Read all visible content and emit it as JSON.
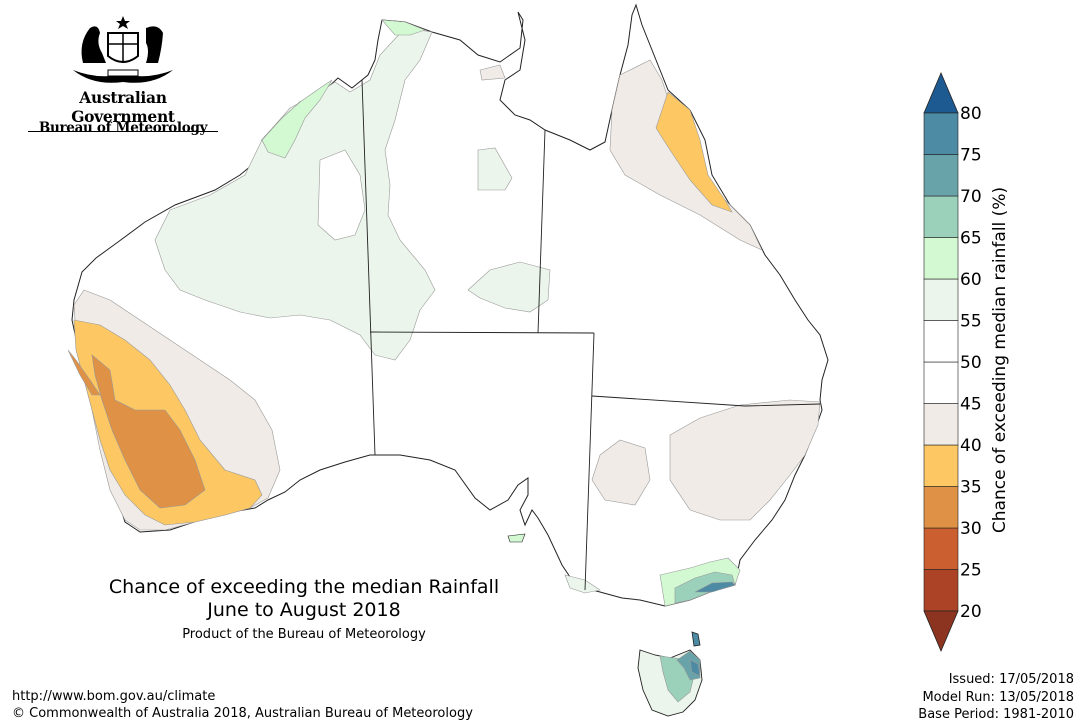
{
  "header": {
    "government_name": "Australian Government",
    "agency_name": "Bureau of Meteorology"
  },
  "map": {
    "title_line1": "Chance of exceeding the median Rainfall",
    "title_line2": "June to August 2018",
    "product_line": "Product of the Bureau of Meteorology",
    "regions": [
      {
        "name": "Southwest WA",
        "category": "30-35"
      },
      {
        "name": "Southern WA coast",
        "category": "35-40"
      },
      {
        "name": "Northeast Queensland coast",
        "category": "35-40"
      },
      {
        "name": "Kimberley coast",
        "category": "60-65"
      },
      {
        "name": "Eastern Victoria",
        "category": "65-75"
      },
      {
        "name": "Western Tasmania",
        "category": "70-75"
      },
      {
        "name": "Southern NSW inland",
        "category": "40-45"
      }
    ]
  },
  "legend": {
    "title": "Chance of exceeding median rainfall (%)",
    "ticks": [
      "20",
      "25",
      "30",
      "35",
      "40",
      "45",
      "50",
      "55",
      "60",
      "65",
      "70",
      "75",
      "80"
    ],
    "colors": [
      "#ad4326",
      "#cc5f2f",
      "#df9145",
      "#fdc864",
      "#f0ebe6",
      "#ffffff",
      "#ffffff",
      "#ebf5eb",
      "#d2f9d2",
      "#9bd1ba",
      "#69a3aa",
      "#4d8aa3"
    ],
    "cap_top_color": "#1d5a91",
    "cap_bottom_color": "#8c341f"
  },
  "footer": {
    "url": "http://www.bom.gov.au/climate",
    "copyright": "© Commonwealth of Australia 2018, Australian Bureau of Meteorology",
    "issued": "Issued: 17/05/2018",
    "model_run": "Model Run: 13/05/2018",
    "base_period": "Base Period: 1981-2010"
  }
}
